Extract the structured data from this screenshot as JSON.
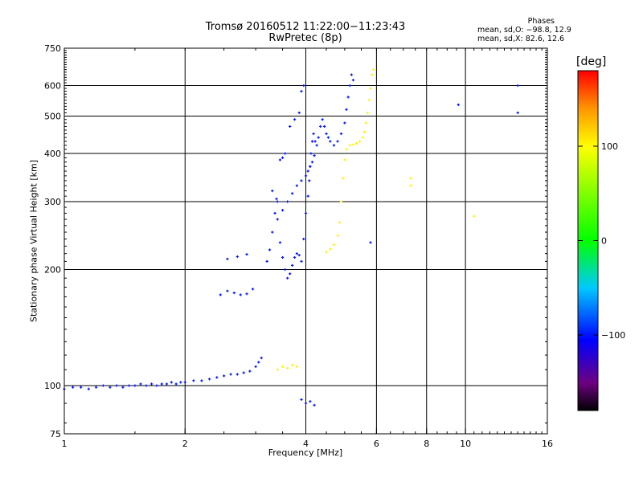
{
  "chart_data": {
    "type": "scatter",
    "title": "Tromsø 20160512 11:22:00−11:23:43",
    "subtitle": "RwPretec (8p)",
    "xlabel": "Frequency [MHz]",
    "ylabel": "Stationary phase Virtual Height [km]",
    "x_scale": "log",
    "y_scale": "log",
    "xlim": [
      1,
      16
    ],
    "ylim": [
      75,
      750
    ],
    "x_ticks": [
      1,
      2,
      4,
      6,
      8,
      10,
      16
    ],
    "y_ticks": [
      75,
      100,
      200,
      300,
      400,
      500,
      600,
      750
    ],
    "grid": true,
    "legend": {
      "title": "Phases",
      "lines": [
        "mean, sd,O: −98.8, 12.9",
        "mean, sd,X:  82.6, 12.6"
      ]
    },
    "colorbar": {
      "label": "[deg]",
      "range": [
        -180,
        180
      ],
      "ticks": [
        100,
        0,
        -100
      ]
    },
    "series": [
      {
        "mode": "O",
        "phase": -100,
        "points": [
          [
            1.0,
            98
          ],
          [
            1.05,
            99
          ],
          [
            1.1,
            99
          ],
          [
            1.15,
            98
          ],
          [
            1.2,
            99
          ],
          [
            1.25,
            100
          ],
          [
            1.3,
            99
          ],
          [
            1.35,
            100
          ],
          [
            1.4,
            99
          ],
          [
            1.45,
            100
          ],
          [
            1.5,
            100
          ],
          [
            1.55,
            101
          ],
          [
            1.6,
            100
          ],
          [
            1.65,
            101
          ],
          [
            1.7,
            100
          ],
          [
            1.75,
            101
          ],
          [
            1.8,
            101
          ],
          [
            1.85,
            102
          ],
          [
            1.9,
            101
          ],
          [
            1.95,
            102
          ],
          [
            2.0,
            102
          ],
          [
            2.1,
            103
          ],
          [
            2.2,
            103
          ],
          [
            2.3,
            104
          ],
          [
            2.4,
            105
          ],
          [
            2.5,
            106
          ],
          [
            2.6,
            107
          ],
          [
            2.7,
            107
          ],
          [
            2.8,
            108
          ],
          [
            2.9,
            109
          ],
          [
            3.0,
            112
          ],
          [
            3.05,
            115
          ],
          [
            3.1,
            118
          ],
          [
            2.45,
            172
          ],
          [
            2.55,
            176
          ],
          [
            2.65,
            174
          ],
          [
            2.75,
            172
          ],
          [
            2.85,
            173
          ],
          [
            2.95,
            178
          ],
          [
            2.55,
            213
          ],
          [
            2.7,
            216
          ],
          [
            2.85,
            219
          ],
          [
            3.2,
            210
          ],
          [
            3.25,
            225
          ],
          [
            3.3,
            250
          ],
          [
            3.35,
            280
          ],
          [
            3.38,
            305
          ],
          [
            3.4,
            270
          ],
          [
            3.45,
            235
          ],
          [
            3.5,
            215
          ],
          [
            3.55,
            200
          ],
          [
            3.6,
            190
          ],
          [
            3.65,
            195
          ],
          [
            3.7,
            205
          ],
          [
            3.75,
            215
          ],
          [
            3.8,
            220
          ],
          [
            3.85,
            218
          ],
          [
            3.3,
            320
          ],
          [
            3.4,
            300
          ],
          [
            3.5,
            285
          ],
          [
            3.6,
            300
          ],
          [
            3.7,
            315
          ],
          [
            3.8,
            330
          ],
          [
            3.9,
            340
          ],
          [
            4.0,
            350
          ],
          [
            4.05,
            360
          ],
          [
            4.1,
            370
          ],
          [
            4.15,
            380
          ],
          [
            4.2,
            395
          ],
          [
            3.9,
            210
          ],
          [
            3.95,
            240
          ],
          [
            4.0,
            280
          ],
          [
            4.05,
            310
          ],
          [
            4.08,
            340
          ],
          [
            4.1,
            370
          ],
          [
            4.12,
            400
          ],
          [
            4.15,
            430
          ],
          [
            4.18,
            450
          ],
          [
            4.22,
            430
          ],
          [
            4.26,
            420
          ],
          [
            4.3,
            440
          ],
          [
            4.35,
            470
          ],
          [
            4.4,
            490
          ],
          [
            4.45,
            470
          ],
          [
            4.5,
            450
          ],
          [
            4.55,
            440
          ],
          [
            4.6,
            430
          ],
          [
            4.7,
            420
          ],
          [
            4.8,
            430
          ],
          [
            4.9,
            450
          ],
          [
            5.0,
            480
          ],
          [
            5.05,
            520
          ],
          [
            5.1,
            560
          ],
          [
            5.15,
            600
          ],
          [
            5.2,
            640
          ],
          [
            5.25,
            620
          ],
          [
            3.45,
            385
          ],
          [
            3.5,
            390
          ],
          [
            3.55,
            400
          ],
          [
            3.65,
            470
          ],
          [
            3.75,
            490
          ],
          [
            3.85,
            510
          ],
          [
            3.9,
            580
          ],
          [
            3.95,
            600
          ],
          [
            3.9,
            92
          ],
          [
            4.0,
            90
          ],
          [
            4.1,
            91
          ],
          [
            4.2,
            89
          ],
          [
            5.8,
            235
          ],
          [
            9.6,
            535
          ],
          [
            13.5,
            600
          ],
          [
            13.5,
            510
          ]
        ]
      },
      {
        "mode": "X",
        "phase": 105,
        "points": [
          [
            3.4,
            110
          ],
          [
            3.5,
            112
          ],
          [
            3.6,
            111
          ],
          [
            3.7,
            113
          ],
          [
            3.8,
            112
          ],
          [
            4.5,
            222
          ],
          [
            4.6,
            226
          ],
          [
            4.7,
            232
          ],
          [
            4.8,
            245
          ],
          [
            4.85,
            265
          ],
          [
            4.9,
            300
          ],
          [
            4.95,
            345
          ],
          [
            5.0,
            385
          ],
          [
            5.05,
            410
          ],
          [
            5.15,
            420
          ],
          [
            5.25,
            422
          ],
          [
            5.35,
            425
          ],
          [
            5.45,
            430
          ],
          [
            5.55,
            440
          ],
          [
            5.6,
            455
          ],
          [
            5.65,
            480
          ],
          [
            5.7,
            510
          ],
          [
            5.75,
            550
          ],
          [
            5.8,
            590
          ],
          [
            5.85,
            640
          ],
          [
            5.9,
            660
          ],
          [
            7.3,
            345
          ],
          [
            7.3,
            330
          ],
          [
            10.5,
            275
          ]
        ]
      }
    ]
  }
}
